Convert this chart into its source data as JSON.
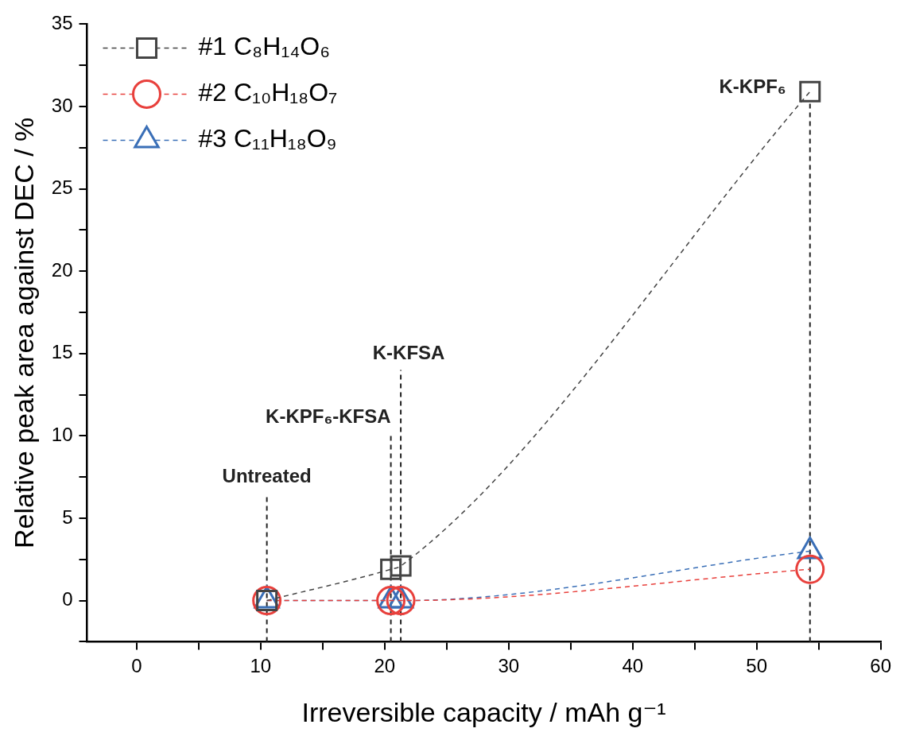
{
  "chart_data": {
    "type": "line",
    "xlabel": "Irreversible capacity / mAh g⁻¹",
    "ylabel": "Relative peak area against DEC / %",
    "x": [
      10.5,
      20.5,
      21.3,
      54.3
    ],
    "series": [
      {
        "name": "#1 C₈H₁₄O₆",
        "color": "#444444",
        "marker": "square",
        "values": [
          0,
          1.9,
          2.1,
          30.9
        ]
      },
      {
        "name": "#2 C₁₀H₁₈O₇",
        "color": "#e8403c",
        "marker": "circle",
        "values": [
          0,
          0,
          0,
          1.9
        ]
      },
      {
        "name": "#3 C₁₁H₁₈O₉",
        "color": "#3a6fb7",
        "marker": "triangle",
        "values": [
          0,
          0,
          0,
          3.0
        ]
      }
    ],
    "line_style": "dashed",
    "legend": "top left",
    "grid": false,
    "xlim": [
      -4,
      60
    ],
    "xticks": [
      0,
      {
        "value": 5,
        "label": null
      },
      10,
      {
        "value": 15,
        "label": null
      },
      20,
      {
        "value": 25,
        "label": null
      },
      30,
      {
        "value": 35,
        "label": null
      },
      40,
      {
        "value": 45,
        "label": null
      },
      50,
      {
        "value": 55,
        "label": null
      },
      60
    ],
    "ylim": [
      -2.5,
      35
    ],
    "yticks": [
      {
        "value": -2.5,
        "label": null
      },
      0,
      {
        "value": 2.5,
        "label": null
      },
      5,
      {
        "value": 7.5,
        "label": null
      },
      10,
      {
        "value": 12.5,
        "label": null
      },
      15,
      {
        "value": 17.5,
        "label": null
      },
      20,
      {
        "value": 22.5,
        "label": null
      },
      25,
      {
        "value": 27.5,
        "label": null
      },
      30,
      {
        "value": 32.5,
        "label": null
      },
      35
    ],
    "ref_lines": [
      {
        "axis": "x",
        "value": 10.5,
        "label": "Untreated",
        "color": "#222222",
        "line_style": "dashed"
      },
      {
        "axis": "x",
        "value": 20.5,
        "label": "K-KPF₆-KFSA",
        "color": "#222222",
        "line_style": "dashed"
      },
      {
        "axis": "x",
        "value": 21.3,
        "label": "K-KFSA",
        "color": "#222222",
        "line_style": "dashed"
      },
      {
        "axis": "x",
        "value": 54.3,
        "label": "K-KPF₆",
        "color": "#222222",
        "line_style": "dashed"
      }
    ]
  }
}
